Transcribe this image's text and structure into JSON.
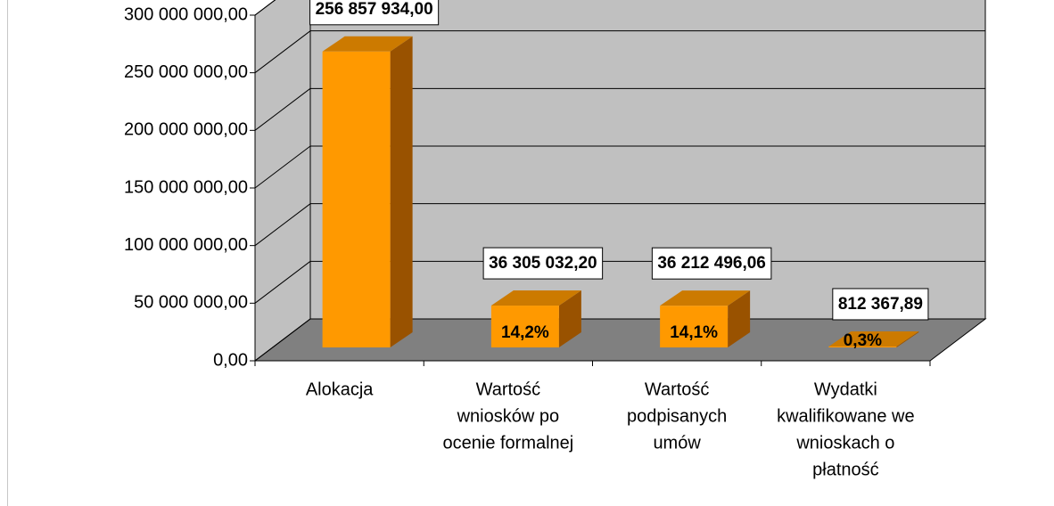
{
  "chart_data": {
    "type": "bar3d",
    "categories": [
      [
        "Alokacja"
      ],
      [
        "Wartość",
        "wniosków po",
        "ocenie formalnej"
      ],
      [
        "Wartość",
        "podpisanych",
        "umów"
      ],
      [
        "Wydatki",
        "kwalifikowane we",
        "wnioskach o",
        "płatność"
      ]
    ],
    "values": [
      256857934.0,
      36305032.2,
      36212496.06,
      812367.89
    ],
    "value_labels": [
      "256 857 934,00",
      "36 305 032,20",
      "36 212 496,06",
      "812 367,89"
    ],
    "shares": [
      null,
      14.2,
      14.1,
      0.3
    ],
    "share_labels": [
      null,
      "14,2%",
      "14,1%",
      "0,3%"
    ],
    "color": "#ff9900",
    "ylim": [
      0,
      300000000
    ],
    "yticks": [
      {
        "value": 0,
        "label": "0,00"
      },
      {
        "value": 50000000,
        "label": "50 000 000,00"
      },
      {
        "value": 100000000,
        "label": "100 000 000,00"
      },
      {
        "value": 150000000,
        "label": "150 000 000,00"
      },
      {
        "value": 200000000,
        "label": "200 000 000,00"
      },
      {
        "value": 250000000,
        "label": "250 000 000,00"
      },
      {
        "value": 300000000,
        "label": "300 000 000,00"
      }
    ],
    "grid": true
  }
}
